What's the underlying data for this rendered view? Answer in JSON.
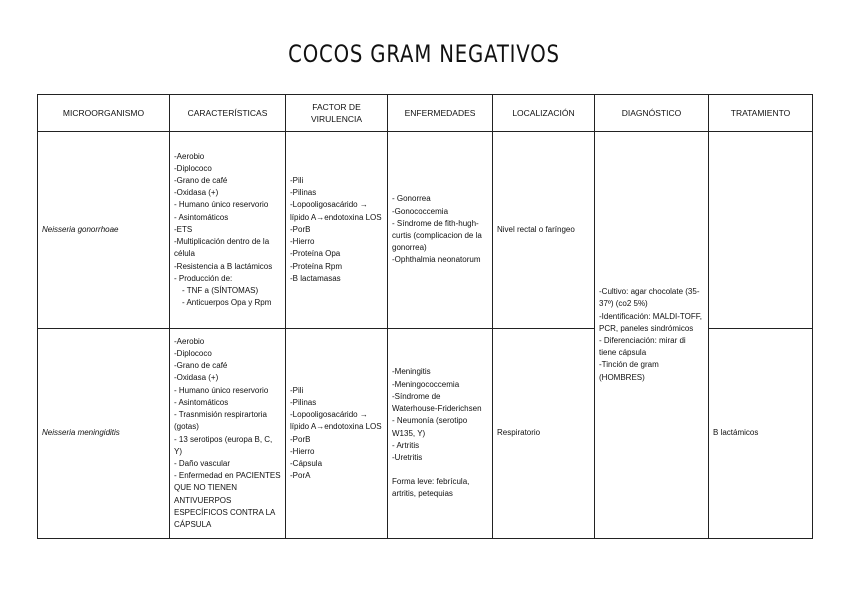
{
  "title": "COCOS GRAM NEGATIVOS",
  "table": {
    "headers": [
      "MICROORGANISMO",
      "CARACTERÍSTICAS",
      "FACTOR DE VIRULENCIA",
      "ENFERMEDADES",
      "LOCALIZACIÓN",
      "DIAGNÓSTICO",
      "TRATAMIENTO"
    ],
    "diagnosis": [
      "-Cultivo: agar chocolate (35-37º) (co2 5%)",
      "-Identificación: MALDI-TOFF, PCR, paneles sindrómicos",
      "- Diferenciación: mirar di tiene cápsula",
      "-Tinción de gram (HOMBRES)"
    ],
    "rows": [
      {
        "organism": "Neisseria gonorrhoae",
        "characteristics": [
          {
            "text": "-Aerobio"
          },
          {
            "text": "-Diplococo"
          },
          {
            "text": "-Grano de café"
          },
          {
            "text": "-Oxidasa (+)"
          },
          {
            "text": "- Humano único reservorio"
          },
          {
            "text": "- Asintomáticos"
          },
          {
            "text": "-ETS"
          },
          {
            "text": "-Multiplicación dentro de la célula"
          },
          {
            "text": "-Resistencia a B lactámicos"
          },
          {
            "text": "- Producción de:",
            "sub": [
              "- TNF a (SÍNTOMAS)",
              "- Anticuerpos Opa y Rpm"
            ]
          }
        ],
        "virulence": [
          "-Pili",
          "-Pilinas",
          "-Lopooligosacárido → lípido A→endotoxina LOS",
          "-PorB",
          "-Hierro",
          "-Proteína Opa",
          "-Proteína Rpm",
          "-B lactamasas"
        ],
        "diseases": [
          "- Gonorrea",
          "-Gonococcemia",
          "- Síndrome de fith-hugh-curtis (complicacion de la gonorrea)",
          "-Ophthalmia neonatorum"
        ],
        "location": "Nivel rectal o faríngeo"
      },
      {
        "organism": "Neisseria meningiditis",
        "characteristics": [
          {
            "text": "-Aerobio"
          },
          {
            "text": "-Diplococo"
          },
          {
            "text": "-Grano de café"
          },
          {
            "text": "-Oxidasa (+)"
          },
          {
            "text": "- Humano único reservorio"
          },
          {
            "text": "- Asintomáticos"
          },
          {
            "text": "- Trasnmisión respirartoria (gotas)"
          },
          {
            "text": "- 13 serotipos (europa B, C, Y)"
          },
          {
            "text": "- Daño vascular"
          },
          {
            "text": "- Enfermedad en PACIENTES QUE NO TIENEN ANTIVUERPOS ESPECÍFICOS CONTRA LA CÁPSULA"
          }
        ],
        "virulence": [
          "-Pili",
          "-Pilinas",
          "-Lopooligosacárido → lípido A→endotoxina LOS",
          "-PorB",
          "-Hierro",
          "-Cápsula",
          "-PorA"
        ],
        "diseases": [
          "-Meningitis",
          "-Meningococcemia",
          "-Síndrome de Waterhouse-Friderichsen",
          "- Neumonía (serotipo W135, Y)",
          "- Artritis",
          "-Uretritis"
        ],
        "note": "Forma leve: febrícula, artritis, petequias",
        "location": "Respiratorio",
        "treatment": "B lactámicos"
      }
    ]
  }
}
